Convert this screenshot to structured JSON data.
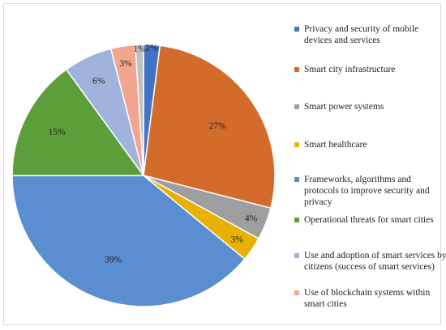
{
  "chart_data": {
    "type": "pie",
    "title": "",
    "slices": [
      {
        "label": "Privacy and security of mobile devices and services",
        "value": 2,
        "display": "2%",
        "color": "#4472c4"
      },
      {
        "label": "Smart city infrastructure",
        "value": 27,
        "display": "27%",
        "color": "#d36b2b"
      },
      {
        "label": "Smart power systems",
        "value": 4,
        "display": "4%",
        "color": "#9e9e9e"
      },
      {
        "label": "Smart healthcare",
        "value": 3,
        "display": "3%",
        "color": "#e8b000"
      },
      {
        "label": "Frameworks, algorithms and protocols to improve security and privacy",
        "value": 39,
        "display": "39%",
        "color": "#5b8ed1"
      },
      {
        "label": "Operational threats for smart cities",
        "value": 15,
        "display": "15%",
        "color": "#5c9e3a"
      },
      {
        "label": "Use and adoption of smart services by citizens (success of smart services)",
        "value": 6,
        "display": "6%",
        "color": "#9fb3dd"
      },
      {
        "label": "Use of blockchain systems within smart cities",
        "value": 3,
        "display": "3%",
        "color": "#f2a68f"
      },
      {
        "label": "",
        "value": 1,
        "display": "1%",
        "color": "#c0c0c0"
      }
    ],
    "legend_position": "right"
  }
}
